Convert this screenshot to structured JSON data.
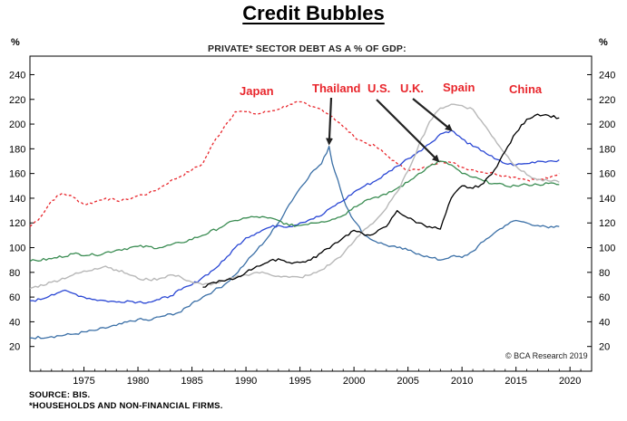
{
  "title": "Credit Bubbles",
  "chart_data": {
    "type": "line",
    "subtitle": "PRIVATE* SECTOR DEBT AS A % OF GDP:",
    "y_unit": "%",
    "xlim": [
      1970,
      2022
    ],
    "ylim": [
      0,
      255
    ],
    "x_ticks": [
      1975,
      1980,
      1985,
      1990,
      1995,
      2000,
      2005,
      2010,
      2015,
      2020
    ],
    "y_ticks": [
      20,
      40,
      60,
      80,
      100,
      120,
      140,
      160,
      180,
      200,
      220,
      240
    ],
    "grid": false,
    "series": [
      {
        "name": "Japan",
        "color": "#e8262c",
        "dash": true,
        "points": [
          [
            1970,
            117
          ],
          [
            1971,
            125
          ],
          [
            1972,
            138
          ],
          [
            1973,
            144
          ],
          [
            1974,
            141
          ],
          [
            1975,
            135
          ],
          [
            1976,
            137
          ],
          [
            1977,
            140
          ],
          [
            1978,
            138
          ],
          [
            1979,
            139
          ],
          [
            1980,
            142
          ],
          [
            1981,
            144
          ],
          [
            1982,
            148
          ],
          [
            1983,
            154
          ],
          [
            1984,
            158
          ],
          [
            1985,
            163
          ],
          [
            1986,
            168
          ],
          [
            1987,
            185
          ],
          [
            1988,
            198
          ],
          [
            1989,
            210
          ],
          [
            1990,
            210
          ],
          [
            1991,
            208
          ],
          [
            1992,
            210
          ],
          [
            1993,
            212
          ],
          [
            1994,
            216
          ],
          [
            1995,
            218
          ],
          [
            1996,
            214
          ],
          [
            1997,
            212
          ],
          [
            1998,
            206
          ],
          [
            1999,
            198
          ],
          [
            2000,
            190
          ],
          [
            2001,
            185
          ],
          [
            2002,
            182
          ],
          [
            2003,
            175
          ],
          [
            2004,
            168
          ],
          [
            2005,
            163
          ],
          [
            2006,
            163
          ],
          [
            2007,
            166
          ],
          [
            2008,
            170
          ],
          [
            2009,
            169
          ],
          [
            2010,
            165
          ],
          [
            2011,
            163
          ],
          [
            2012,
            161
          ],
          [
            2013,
            160
          ],
          [
            2014,
            158
          ],
          [
            2015,
            157
          ],
          [
            2016,
            155
          ],
          [
            2017,
            155
          ],
          [
            2018,
            156
          ],
          [
            2019,
            160
          ]
        ]
      },
      {
        "name": "Thailand",
        "color": "#3a6fa6",
        "dash": false,
        "points": [
          [
            1970,
            27
          ],
          [
            1972,
            28
          ],
          [
            1974,
            30
          ],
          [
            1976,
            33
          ],
          [
            1978,
            37
          ],
          [
            1980,
            42
          ],
          [
            1981,
            41
          ],
          [
            1982,
            44
          ],
          [
            1984,
            48
          ],
          [
            1985,
            55
          ],
          [
            1986,
            60
          ],
          [
            1987,
            65
          ],
          [
            1988,
            70
          ],
          [
            1989,
            78
          ],
          [
            1990,
            88
          ],
          [
            1991,
            98
          ],
          [
            1992,
            108
          ],
          [
            1993,
            120
          ],
          [
            1994,
            135
          ],
          [
            1995,
            148
          ],
          [
            1996,
            160
          ],
          [
            1997,
            168
          ],
          [
            1997.7,
            182
          ],
          [
            1998,
            168
          ],
          [
            1998.5,
            155
          ],
          [
            1999,
            140
          ],
          [
            1999.5,
            130
          ],
          [
            2000,
            122
          ],
          [
            2001,
            110
          ],
          [
            2002,
            105
          ],
          [
            2003,
            102
          ],
          [
            2004,
            100
          ],
          [
            2005,
            98
          ],
          [
            2006,
            95
          ],
          [
            2007,
            92
          ],
          [
            2008,
            90
          ],
          [
            2009,
            93
          ],
          [
            2010,
            92
          ],
          [
            2011,
            97
          ],
          [
            2012,
            105
          ],
          [
            2013,
            112
          ],
          [
            2014,
            118
          ],
          [
            2015,
            122
          ],
          [
            2016,
            120
          ],
          [
            2017,
            118
          ],
          [
            2018,
            116
          ],
          [
            2019,
            117
          ]
        ]
      },
      {
        "name": "U.S.",
        "color": "#2a47d4",
        "dash": false,
        "points": [
          [
            1970,
            57
          ],
          [
            1971,
            58
          ],
          [
            1972,
            62
          ],
          [
            1973,
            65
          ],
          [
            1974,
            63
          ],
          [
            1975,
            60
          ],
          [
            1976,
            58
          ],
          [
            1977,
            57
          ],
          [
            1978,
            56
          ],
          [
            1979,
            57
          ],
          [
            1980,
            56
          ],
          [
            1981,
            56
          ],
          [
            1982,
            58
          ],
          [
            1983,
            61
          ],
          [
            1984,
            66
          ],
          [
            1985,
            70
          ],
          [
            1986,
            76
          ],
          [
            1987,
            82
          ],
          [
            1988,
            90
          ],
          [
            1989,
            100
          ],
          [
            1990,
            108
          ],
          [
            1991,
            112
          ],
          [
            1992,
            116
          ],
          [
            1993,
            118
          ],
          [
            1994,
            117
          ],
          [
            1995,
            120
          ],
          [
            1996,
            123
          ],
          [
            1997,
            126
          ],
          [
            1998,
            133
          ],
          [
            1999,
            138
          ],
          [
            2000,
            145
          ],
          [
            2001,
            150
          ],
          [
            2002,
            154
          ],
          [
            2003,
            160
          ],
          [
            2004,
            166
          ],
          [
            2005,
            172
          ],
          [
            2006,
            178
          ],
          [
            2007,
            184
          ],
          [
            2008,
            192
          ],
          [
            2009,
            195
          ],
          [
            2010,
            188
          ],
          [
            2011,
            182
          ],
          [
            2012,
            178
          ],
          [
            2013,
            172
          ],
          [
            2014,
            168
          ],
          [
            2015,
            167
          ],
          [
            2016,
            168
          ],
          [
            2017,
            170
          ],
          [
            2018,
            170
          ],
          [
            2019,
            171
          ]
        ]
      },
      {
        "name": "U.K.",
        "color": "#3a8c52",
        "dash": false,
        "points": [
          [
            1970,
            89
          ],
          [
            1972,
            91
          ],
          [
            1974,
            95
          ],
          [
            1976,
            94
          ],
          [
            1978,
            98
          ],
          [
            1980,
            101
          ],
          [
            1982,
            100
          ],
          [
            1984,
            104
          ],
          [
            1986,
            110
          ],
          [
            1988,
            118
          ],
          [
            1989,
            122
          ],
          [
            1990,
            124
          ],
          [
            1991,
            125
          ],
          [
            1992,
            124
          ],
          [
            1993,
            122
          ],
          [
            1994,
            118
          ],
          [
            1995,
            118
          ],
          [
            1996,
            120
          ],
          [
            1997,
            121
          ],
          [
            1998,
            123
          ],
          [
            1999,
            126
          ],
          [
            2000,
            133
          ],
          [
            2001,
            138
          ],
          [
            2002,
            141
          ],
          [
            2003,
            143
          ],
          [
            2004,
            148
          ],
          [
            2005,
            153
          ],
          [
            2006,
            160
          ],
          [
            2007,
            166
          ],
          [
            2008,
            170
          ],
          [
            2009,
            167
          ],
          [
            2010,
            160
          ],
          [
            2011,
            157
          ],
          [
            2012,
            154
          ],
          [
            2013,
            152
          ],
          [
            2014,
            150
          ],
          [
            2015,
            150
          ],
          [
            2016,
            151
          ],
          [
            2017,
            151
          ],
          [
            2018,
            152
          ],
          [
            2019,
            151
          ]
        ]
      },
      {
        "name": "Spain",
        "color": "#b8b8b8",
        "dash": false,
        "points": [
          [
            1970,
            67
          ],
          [
            1972,
            72
          ],
          [
            1974,
            78
          ],
          [
            1976,
            83
          ],
          [
            1977,
            85
          ],
          [
            1978,
            82
          ],
          [
            1979,
            79
          ],
          [
            1980,
            75
          ],
          [
            1981,
            74
          ],
          [
            1982,
            75
          ],
          [
            1983,
            78
          ],
          [
            1984,
            76
          ],
          [
            1985,
            72
          ],
          [
            1986,
            70
          ],
          [
            1987,
            71
          ],
          [
            1988,
            73
          ],
          [
            1989,
            76
          ],
          [
            1990,
            78
          ],
          [
            1991,
            80
          ],
          [
            1992,
            79
          ],
          [
            1993,
            77
          ],
          [
            1994,
            76
          ],
          [
            1995,
            76
          ],
          [
            1996,
            78
          ],
          [
            1997,
            82
          ],
          [
            1998,
            88
          ],
          [
            1999,
            95
          ],
          [
            2000,
            105
          ],
          [
            2001,
            115
          ],
          [
            2002,
            122
          ],
          [
            2003,
            132
          ],
          [
            2004,
            145
          ],
          [
            2005,
            162
          ],
          [
            2006,
            183
          ],
          [
            2007,
            202
          ],
          [
            2008,
            213
          ],
          [
            2009,
            216
          ],
          [
            2010,
            215
          ],
          [
            2011,
            212
          ],
          [
            2012,
            200
          ],
          [
            2013,
            188
          ],
          [
            2014,
            176
          ],
          [
            2015,
            166
          ],
          [
            2016,
            159
          ],
          [
            2017,
            155
          ],
          [
            2018,
            154
          ],
          [
            2019,
            153
          ]
        ]
      },
      {
        "name": "China",
        "color": "#000000",
        "dash": false,
        "points": [
          [
            1986,
            68
          ],
          [
            1987,
            72
          ],
          [
            1988,
            73
          ],
          [
            1989,
            75
          ],
          [
            1990,
            80
          ],
          [
            1991,
            85
          ],
          [
            1992,
            88
          ],
          [
            1993,
            91
          ],
          [
            1994,
            88
          ],
          [
            1995,
            88
          ],
          [
            1996,
            90
          ],
          [
            1997,
            96
          ],
          [
            1998,
            102
          ],
          [
            1999,
            108
          ],
          [
            2000,
            114
          ],
          [
            2001,
            110
          ],
          [
            2002,
            112
          ],
          [
            2003,
            117
          ],
          [
            2004,
            130
          ],
          [
            2005,
            124
          ],
          [
            2006,
            120
          ],
          [
            2007,
            117
          ],
          [
            2008,
            115
          ],
          [
            2009,
            140
          ],
          [
            2010,
            150
          ],
          [
            2011,
            148
          ],
          [
            2012,
            152
          ],
          [
            2013,
            163
          ],
          [
            2014,
            178
          ],
          [
            2015,
            193
          ],
          [
            2016,
            204
          ],
          [
            2017,
            208
          ],
          [
            2018,
            207
          ],
          [
            2019,
            205
          ]
        ]
      }
    ],
    "annotations": [
      {
        "label": "Japan",
        "series": "Japan"
      },
      {
        "label": "Thailand",
        "series": "Thailand",
        "arrow_to": [
          1997.7,
          182
        ]
      },
      {
        "label": "U.S.",
        "series": "U.K.",
        "arrow_to": [
          2007.8,
          168
        ]
      },
      {
        "label": "U.K.",
        "series": "U.S.",
        "arrow_to": [
          2009,
          193
        ]
      },
      {
        "label": "Spain",
        "series": "Spain"
      },
      {
        "label": "China",
        "series": "China"
      }
    ],
    "credit": "© BCA Research 2019"
  },
  "footer": {
    "source": "SOURCE: BIS.",
    "note": "*HOUSEHOLDS AND NON-FINANCIAL FIRMS."
  }
}
